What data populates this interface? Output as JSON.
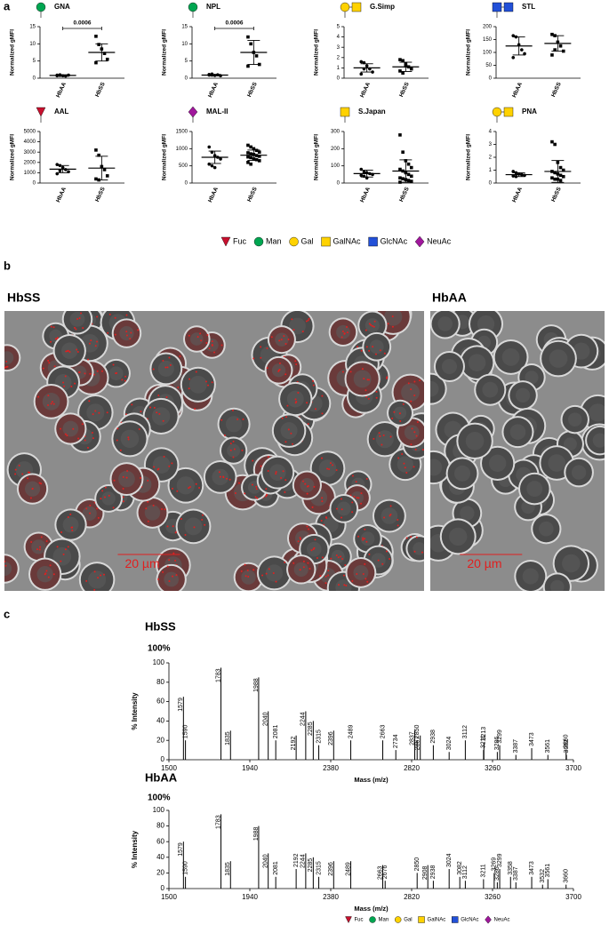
{
  "panel_labels": [
    "a",
    "b",
    "c"
  ],
  "legend_a": [
    "Fuc",
    "Man",
    "Gal",
    "GalNAc",
    "GlcNAc",
    "NeuAc"
  ],
  "legend_c": [
    "Fuc",
    "Man",
    "Gal",
    "GalNAc",
    "GlcNAc",
    "NeuAc"
  ],
  "images": {
    "left_label": "HbSS",
    "right_label": "HbAA",
    "scale_bars": [
      "20 µm",
      "20 µm"
    ]
  },
  "chart_data": [
    {
      "type": "dot",
      "title": "GNA",
      "ylabel": "Normalized gMFI",
      "categories": [
        "HbAA",
        "HbSS"
      ],
      "points": [
        [
          0.9,
          0.8,
          0.7,
          0.6,
          0.9,
          0.7,
          1.0
        ],
        [
          12.2,
          9.8,
          8.5,
          7.2,
          5.5,
          4.5
        ]
      ],
      "mean": [
        0.8,
        7.5
      ],
      "sd": [
        0.2,
        2.5
      ],
      "ylim": [
        0,
        15
      ],
      "yticks": [
        0,
        5,
        10,
        15
      ],
      "annotation": "0.0006"
    },
    {
      "type": "dot",
      "title": "NPL",
      "ylabel": "Normalized gMFI",
      "categories": [
        "HbAA",
        "HbSS"
      ],
      "points": [
        [
          1.1,
          0.9,
          0.8,
          1.0,
          0.7,
          0.9,
          1.2
        ],
        [
          12.0,
          10.0,
          7.5,
          6.5,
          4.0,
          3.5
        ]
      ],
      "mean": [
        0.9,
        7.5
      ],
      "sd": [
        0.2,
        3.5
      ],
      "ylim": [
        0,
        15
      ],
      "yticks": [
        0,
        5,
        10,
        15
      ],
      "annotation": "0.0006"
    },
    {
      "type": "dot",
      "title": "G.Simp",
      "ylabel": "Normalized gMFI",
      "categories": [
        "HbAA",
        "HbSS"
      ],
      "points": [
        [
          1.6,
          1.5,
          1.2,
          0.9,
          0.6,
          0.4,
          0.9
        ],
        [
          1.8,
          1.7,
          1.4,
          1.1,
          0.9,
          0.7,
          0.5,
          1.2
        ]
      ],
      "mean": [
        1.0,
        1.1
      ],
      "sd": [
        0.4,
        0.45
      ],
      "ylim": [
        0,
        5
      ],
      "yticks": [
        0,
        1,
        2,
        3,
        4,
        5
      ]
    },
    {
      "type": "dot",
      "title": "STL",
      "ylabel": "Normalized gMFI",
      "categories": [
        "HbAA",
        "HbSS"
      ],
      "points": [
        [
          165,
          160,
          130,
          110,
          95,
          80
        ],
        [
          170,
          165,
          140,
          125,
          105,
          90,
          110
        ]
      ],
      "mean": [
        125,
        135
      ],
      "sd": [
        35,
        30
      ],
      "ylim": [
        0,
        200
      ],
      "yticks": [
        0,
        50,
        100,
        150,
        200
      ]
    },
    {
      "type": "dot",
      "title": "AAL",
      "ylabel": "Normalized gMFI",
      "categories": [
        "HbAA",
        "HbSS"
      ],
      "points": [
        [
          1800,
          1700,
          1500,
          1300,
          1100,
          900,
          1200
        ],
        [
          3200,
          2700,
          1600,
          1300,
          700,
          400,
          300
        ]
      ],
      "mean": [
        1350,
        1450
      ],
      "sd": [
        350,
        1150
      ],
      "ylim": [
        0,
        5000
      ],
      "yticks": [
        0,
        1000,
        2000,
        3000,
        4000,
        5000
      ]
    },
    {
      "type": "dot",
      "title": "MAL-II",
      "ylabel": "Normalized gMFI",
      "categories": [
        "HbAA",
        "HbSS"
      ],
      "points": [
        [
          1050,
          900,
          800,
          750,
          700,
          550,
          500,
          450
        ],
        [
          1100,
          1050,
          1000,
          950,
          900,
          880,
          850,
          830,
          800,
          780,
          760,
          740,
          700,
          680,
          650,
          600,
          550
        ]
      ],
      "mean": [
        750,
        810
      ],
      "sd": [
        180,
        150
      ],
      "ylim": [
        0,
        1500
      ],
      "yticks": [
        0,
        500,
        1000,
        1500
      ]
    },
    {
      "type": "dot",
      "title": "S.Japan",
      "ylabel": "Normalized gMFI",
      "categories": [
        "HbAA",
        "HbSS"
      ],
      "points": [
        [
          80,
          65,
          60,
          55,
          50,
          45,
          40,
          30
        ],
        [
          280,
          180,
          130,
          110,
          90,
          80,
          70,
          60,
          50,
          40,
          30,
          25,
          20,
          15,
          10,
          5
        ]
      ],
      "mean": [
        55,
        70
      ],
      "sd": [
        20,
        65
      ],
      "ylim": [
        0,
        300
      ],
      "yticks": [
        0,
        100,
        200,
        300
      ]
    },
    {
      "type": "dot",
      "title": "PNA",
      "ylabel": "Normalized gMFI",
      "categories": [
        "HbAA",
        "HbSS"
      ],
      "points": [
        [
          0.9,
          0.8,
          0.7,
          0.65,
          0.6,
          0.55,
          0.5
        ],
        [
          3.2,
          3.0,
          1.6,
          1.2,
          1.0,
          0.9,
          0.8,
          0.7,
          0.6,
          0.5,
          0.4,
          0.3,
          0.3,
          0.2
        ]
      ],
      "mean": [
        0.65,
        0.9
      ],
      "sd": [
        0.15,
        0.85
      ],
      "ylim": [
        0,
        4
      ],
      "yticks": [
        0,
        1,
        2,
        3,
        4
      ]
    },
    {
      "type": "spectrum",
      "title": "HbSS",
      "top_label": "100%",
      "ylabel": "% Intensity",
      "xlabel": "Mass (m/z)",
      "color": "#000000",
      "x": [
        1579,
        1590,
        1783,
        1835,
        1988,
        2040,
        2081,
        2192,
        2244,
        2285,
        2315,
        2396,
        2489,
        2663,
        2734,
        2837,
        2850,
        2867,
        2938,
        3024,
        3112,
        3211,
        3213,
        3286,
        3299,
        3387,
        3473,
        3561,
        3660,
        3662
      ],
      "values": [
        65,
        20,
        95,
        30,
        85,
        50,
        20,
        25,
        50,
        40,
        15,
        30,
        20,
        20,
        10,
        30,
        20,
        25,
        15,
        8,
        20,
        10,
        18,
        8,
        15,
        5,
        12,
        5,
        10,
        5
      ],
      "xlim": [
        1500,
        3700
      ],
      "xticks": [
        1500,
        1940,
        2380,
        2820,
        3260,
        3700
      ],
      "ylim": [
        0,
        100
      ],
      "yticks": [
        0,
        20,
        40,
        60,
        80,
        100
      ]
    },
    {
      "type": "spectrum",
      "title": "HbAA",
      "top_label": "100%",
      "ylabel": "% Intensity",
      "xlabel": "Mass (m/z)",
      "color": "#000000",
      "x": [
        1579,
        1590,
        1783,
        1835,
        1988,
        2040,
        2081,
        2192,
        2244,
        2285,
        2315,
        2396,
        2489,
        2663,
        2676,
        2850,
        2908,
        2938,
        3024,
        3082,
        3112,
        3211,
        3269,
        3286,
        3299,
        3358,
        3387,
        3473,
        3532,
        3561,
        3660
      ],
      "values": [
        60,
        15,
        95,
        35,
        80,
        45,
        15,
        25,
        45,
        40,
        15,
        35,
        35,
        30,
        10,
        20,
        30,
        10,
        25,
        15,
        10,
        12,
        20,
        8,
        25,
        15,
        8,
        15,
        5,
        12,
        5
      ],
      "xlim": [
        1500,
        3700
      ],
      "xticks": [
        1500,
        1940,
        2380,
        2820,
        3260,
        3700
      ],
      "ylim": [
        0,
        100
      ],
      "yticks": [
        0,
        20,
        40,
        60,
        80,
        100
      ]
    }
  ]
}
